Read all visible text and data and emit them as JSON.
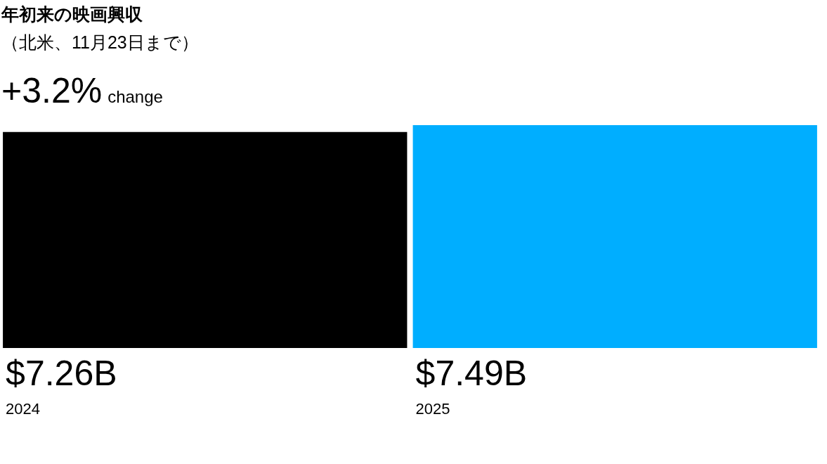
{
  "chart_data": {
    "type": "bar",
    "title": "年初来の映画興収",
    "subtitle": "（北米、11月23日まで）",
    "annotations": [
      "+3.2%",
      "change"
    ],
    "categories": [
      "2024",
      "2025"
    ],
    "values": [
      7.26,
      7.49
    ],
    "value_labels": [
      "$7.26B",
      "$7.49B"
    ],
    "colors": [
      "#000000",
      "#00aeff"
    ]
  }
}
